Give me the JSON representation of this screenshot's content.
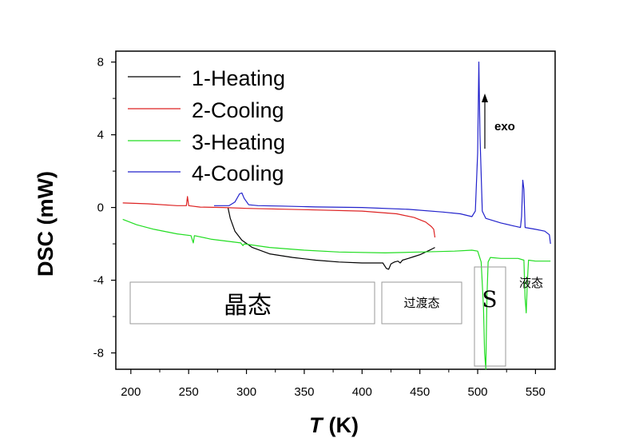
{
  "chart_data": {
    "type": "line",
    "xlabel_italic": "T",
    "xlabel_unit": "(K)",
    "ylabel": "DSC (mW)",
    "xlim": [
      187,
      567
    ],
    "ylim": [
      -8.9,
      8.6
    ],
    "x_ticks": [
      200,
      250,
      300,
      350,
      400,
      450,
      500,
      550
    ],
    "y_ticks": [
      -8,
      -4,
      0,
      4,
      8
    ],
    "legend_position": "top-left",
    "series": [
      {
        "name": "1-Heating",
        "color": "#000000",
        "points": [
          [
            284,
            0
          ],
          [
            286,
            -0.6
          ],
          [
            290,
            -1.3
          ],
          [
            296,
            -1.8
          ],
          [
            305,
            -2.2
          ],
          [
            320,
            -2.55
          ],
          [
            340,
            -2.75
          ],
          [
            360,
            -2.9
          ],
          [
            380,
            -3.0
          ],
          [
            400,
            -3.05
          ],
          [
            412,
            -3.05
          ],
          [
            418,
            -3.05
          ],
          [
            421,
            -3.35
          ],
          [
            423,
            -3.4
          ],
          [
            425,
            -3.1
          ],
          [
            428,
            -3.0
          ],
          [
            431,
            -2.95
          ],
          [
            433,
            -3.05
          ],
          [
            435,
            -2.9
          ],
          [
            440,
            -2.8
          ],
          [
            445,
            -2.7
          ],
          [
            450,
            -2.6
          ],
          [
            455,
            -2.45
          ],
          [
            460,
            -2.3
          ],
          [
            463,
            -2.2
          ]
        ]
      },
      {
        "name": "2-Cooling",
        "color": "#dd2222",
        "points": [
          [
            193,
            0.25
          ],
          [
            215,
            0.2
          ],
          [
            240,
            0.1
          ],
          [
            248,
            0.1
          ],
          [
            249,
            0.6
          ],
          [
            250,
            0.1
          ],
          [
            260,
            0.02
          ],
          [
            280,
            0
          ],
          [
            300,
            -0.05
          ],
          [
            350,
            -0.12
          ],
          [
            400,
            -0.2
          ],
          [
            430,
            -0.35
          ],
          [
            445,
            -0.55
          ],
          [
            455,
            -0.8
          ],
          [
            460,
            -1.05
          ],
          [
            462,
            -1.2
          ],
          [
            463,
            -1.65
          ]
        ]
      },
      {
        "name": "3-Heating",
        "color": "#22dd22",
        "points": [
          [
            193,
            -0.65
          ],
          [
            205,
            -0.95
          ],
          [
            220,
            -1.2
          ],
          [
            240,
            -1.45
          ],
          [
            252,
            -1.55
          ],
          [
            254,
            -1.95
          ],
          [
            255,
            -1.55
          ],
          [
            270,
            -1.75
          ],
          [
            295,
            -1.95
          ],
          [
            297,
            -2.1
          ],
          [
            298,
            -2.0
          ],
          [
            320,
            -2.2
          ],
          [
            350,
            -2.35
          ],
          [
            380,
            -2.45
          ],
          [
            420,
            -2.5
          ],
          [
            450,
            -2.45
          ],
          [
            480,
            -2.4
          ],
          [
            495,
            -2.35
          ],
          [
            500,
            -2.4
          ],
          [
            503,
            -3.0
          ],
          [
            505,
            -5.5
          ],
          [
            506,
            -8.0
          ],
          [
            507,
            -8.9
          ],
          [
            508,
            -5.0
          ],
          [
            509,
            -3.0
          ],
          [
            511,
            -2.75
          ],
          [
            520,
            -2.8
          ],
          [
            535,
            -2.8
          ],
          [
            540,
            -2.9
          ],
          [
            541,
            -5.0
          ],
          [
            542,
            -5.8
          ],
          [
            543,
            -4.0
          ],
          [
            544,
            -2.9
          ],
          [
            550,
            -2.95
          ],
          [
            563,
            -2.95
          ]
        ]
      },
      {
        "name": "4-Cooling",
        "color": "#2222cc",
        "points": [
          [
            272,
            0.1
          ],
          [
            285,
            0.1
          ],
          [
            290,
            0.3
          ],
          [
            294,
            0.75
          ],
          [
            296,
            0.8
          ],
          [
            298,
            0.5
          ],
          [
            302,
            0.15
          ],
          [
            310,
            0.1
          ],
          [
            330,
            0.08
          ],
          [
            360,
            0.03
          ],
          [
            400,
            0
          ],
          [
            440,
            -0.1
          ],
          [
            470,
            -0.25
          ],
          [
            485,
            -0.35
          ],
          [
            495,
            -0.5
          ],
          [
            498,
            -0.2
          ],
          [
            500,
            3.0
          ],
          [
            501,
            8.0
          ],
          [
            502,
            4.0
          ],
          [
            504,
            -0.2
          ],
          [
            507,
            -0.6
          ],
          [
            520,
            -0.85
          ],
          [
            530,
            -1.0
          ],
          [
            537,
            -1.1
          ],
          [
            538,
            -0.5
          ],
          [
            539,
            1.5
          ],
          [
            540,
            1.0
          ],
          [
            541,
            -1.1
          ],
          [
            550,
            -1.2
          ],
          [
            558,
            -1.3
          ],
          [
            562,
            -1.5
          ],
          [
            563,
            -2.0
          ]
        ]
      }
    ],
    "annotations": {
      "exo_label": "exo",
      "crystal_label": "晶态",
      "transition_label": "过渡态",
      "smectic_label": "S",
      "liquid_label": "液态"
    }
  }
}
